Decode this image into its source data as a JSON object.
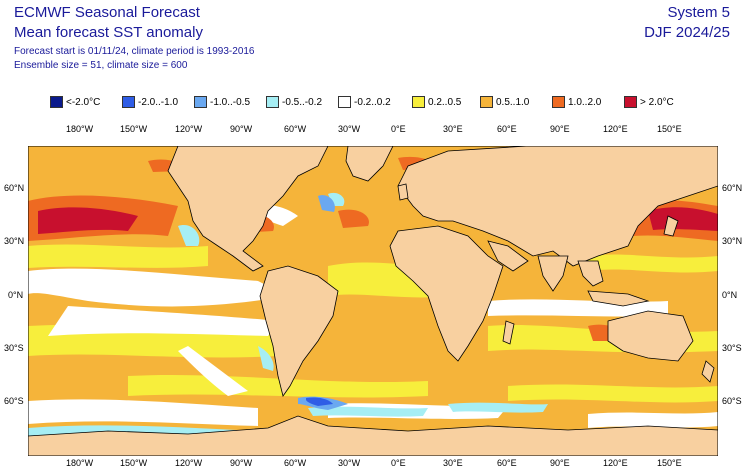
{
  "header": {
    "title": "ECMWF Seasonal Forecast",
    "subtitle": "Mean forecast SST anomaly",
    "forecast_info": "Forecast start is 01/11/24, climate period is 1993-2016",
    "ensemble_info": "Ensemble size = 51, climate size = 600",
    "system": "System 5",
    "season": "DJF 2024/25"
  },
  "legend": [
    {
      "label": "<-2.0°C",
      "color": "#0a1a8c"
    },
    {
      "label": "-2.0..-1.0",
      "color": "#2f5de6"
    },
    {
      "label": "-1.0..-0.5",
      "color": "#6aa8f0"
    },
    {
      "label": "-0.5..-0.2",
      "color": "#a6eef4"
    },
    {
      "label": "-0.2..0.2",
      "color": "#ffffff"
    },
    {
      "label": "0.2..0.5",
      "color": "#f7ee3c"
    },
    {
      "label": "0.5..1.0",
      "color": "#f5b43a"
    },
    {
      "label": "1.0..2.0",
      "color": "#ee6a22"
    },
    {
      "label": "> 2.0°C",
      "color": "#c8102e"
    }
  ],
  "axes": {
    "lon_labels": [
      "180°W",
      "150°W",
      "120°W",
      "90°W",
      "60°W",
      "30°W",
      "0°E",
      "30°E",
      "60°E",
      "90°E",
      "120°E",
      "150°E"
    ],
    "lat_labels": [
      "60°N",
      "30°N",
      "0°N",
      "30°S",
      "60°S"
    ]
  },
  "colors": {
    "land": "#f8d0a0",
    "ocean": "#f5b43a",
    "text": "#1a1a9a"
  }
}
